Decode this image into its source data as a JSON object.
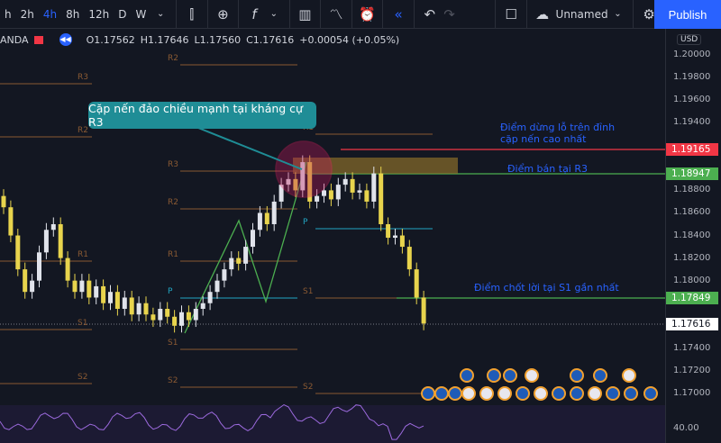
{
  "toolbar": {
    "timeframes": [
      "h",
      "2h",
      "4h",
      "8h",
      "12h",
      "D",
      "W"
    ],
    "active_timeframe": "4h",
    "layout_name": "Unnamed",
    "publish_label": "Publish"
  },
  "legend": {
    "symbol_suffix": "ANDA",
    "open": "O1.17562",
    "high": "H1.17646",
    "low": "L1.17560",
    "close": "C1.17616",
    "change": "+0.00054 (+0.05%)"
  },
  "axis": {
    "currency": "USD",
    "ticks": [
      "1.20000",
      "1.19800",
      "1.19600",
      "1.19400",
      "1.18800",
      "1.18600",
      "1.18400",
      "1.18200",
      "1.18000",
      "1.17400",
      "1.17200",
      "1.17000"
    ],
    "indicator_tick": "40.00"
  },
  "price_tags": [
    {
      "value": "1.19165",
      "color": "#f23645"
    },
    {
      "value": "1.18947",
      "color": "#4caf50"
    },
    {
      "value": "1.17849",
      "color": "#4caf50"
    },
    {
      "value": "1.17616",
      "color": "#ffffff"
    }
  ],
  "annotations": {
    "callout": "Cặp nến đảo chiều mạnh tại kháng cự R3",
    "stop_loss_line1": "Điểm dừng lỗ trên đỉnh",
    "stop_loss_line2": "cặp nến cao nhất",
    "sell": "Điểm bán tại R3",
    "take_profit": "Điểm chốt lời tại S1 gần nhất"
  },
  "pivot_labels": {
    "r1": "R1",
    "r2": "R2",
    "r3": "R3",
    "p": "P",
    "s1": "S1",
    "s2": "S2"
  },
  "colors": {
    "bull": "#e0e3eb",
    "bear": "#e8d44d",
    "pivot": "#8a5a33",
    "pivot_p": "#22a6c4",
    "stop": "#f23645",
    "target": "#4caf50",
    "accent": "#2962ff"
  },
  "candles_close": [
    1.1865,
    1.184,
    1.181,
    1.179,
    1.18,
    1.1825,
    1.1845,
    1.185,
    1.182,
    1.18,
    1.179,
    1.18,
    1.1785,
    1.1795,
    1.178,
    1.179,
    1.1775,
    1.1785,
    1.177,
    1.178,
    1.177,
    1.1765,
    1.1775,
    1.1768,
    1.176,
    1.1772,
    1.1765,
    1.1775,
    1.178,
    1.179,
    1.18,
    1.181,
    1.182,
    1.1815,
    1.183,
    1.1845,
    1.186,
    1.185,
    1.187,
    1.1885,
    1.189,
    1.188,
    1.1905,
    1.187,
    1.1875,
    1.188,
    1.1872,
    1.1885,
    1.189,
    1.1878,
    1.188,
    1.187,
    1.1895,
    1.185,
    1.1838,
    1.184,
    1.183,
    1.181,
    1.1785,
    1.1762
  ]
}
